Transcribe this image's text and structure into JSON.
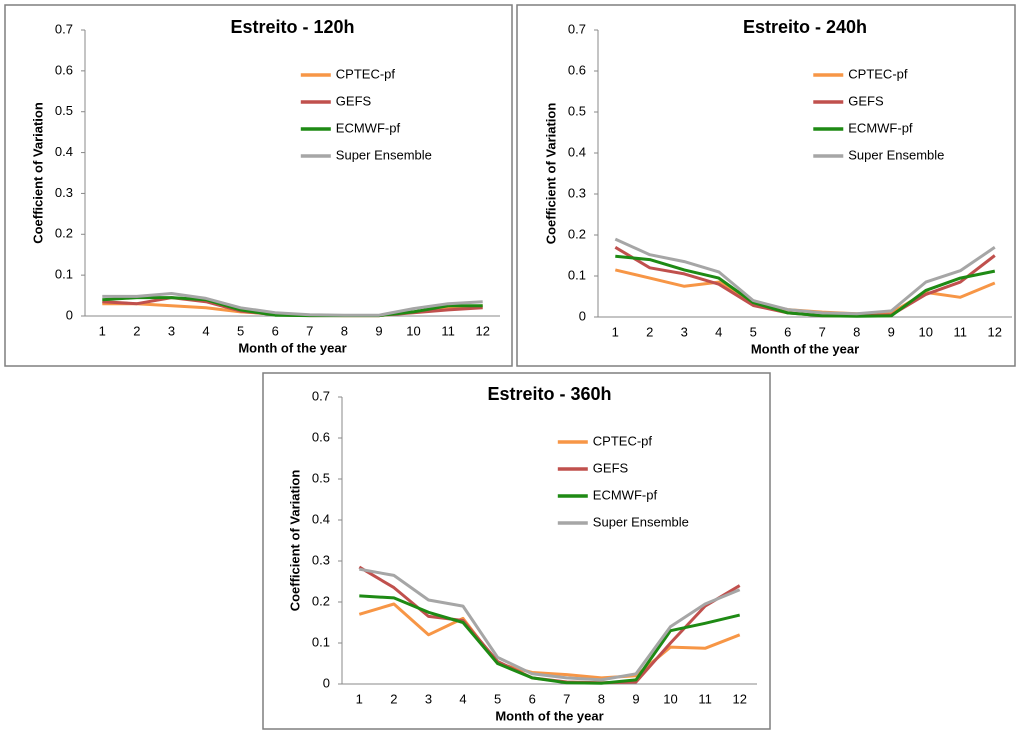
{
  "chart_data": [
    {
      "type": "line",
      "title": "Estreito - 120h",
      "xlabel": "Month of the year",
      "ylabel": "Coefficient of Variation",
      "categories": [
        "1",
        "2",
        "3",
        "4",
        "5",
        "6",
        "7",
        "8",
        "9",
        "10",
        "11",
        "12"
      ],
      "ylim": [
        0,
        0.7
      ],
      "yticks": [
        0,
        0.1,
        0.2,
        0.3,
        0.4,
        0.5,
        0.6,
        0.7
      ],
      "legend": "upper right",
      "series": [
        {
          "name": "CPTEC-pf",
          "color": "#f79646",
          "values": [
            0.03,
            0.03,
            0.025,
            0.02,
            0.01,
            0.005,
            0.002,
            0.001,
            0.001,
            0.01,
            0.02,
            0.025
          ]
        },
        {
          "name": "GEFS",
          "color": "#c0504d",
          "values": [
            0.035,
            0.03,
            0.045,
            0.035,
            0.012,
            0.003,
            0.001,
            0.001,
            0.001,
            0.008,
            0.015,
            0.02
          ]
        },
        {
          "name": "ECMWF-pf",
          "color": "#1e8a14",
          "values": [
            0.04,
            0.045,
            0.045,
            0.04,
            0.015,
            0.002,
            0.001,
            0.001,
            0.001,
            0.01,
            0.025,
            0.025
          ]
        },
        {
          "name": "Super Ensemble",
          "color": "#a6a6a6",
          "values": [
            0.048,
            0.048,
            0.055,
            0.043,
            0.02,
            0.008,
            0.003,
            0.002,
            0.002,
            0.018,
            0.03,
            0.035
          ]
        }
      ]
    },
    {
      "type": "line",
      "title": "Estreito - 240h",
      "xlabel": "Month of the year",
      "ylabel": "Coefficient of Variation",
      "categories": [
        "1",
        "2",
        "3",
        "4",
        "5",
        "6",
        "7",
        "8",
        "9",
        "10",
        "11",
        "12"
      ],
      "ylim": [
        0,
        0.7
      ],
      "yticks": [
        0,
        0.1,
        0.2,
        0.3,
        0.4,
        0.5,
        0.6,
        0.7
      ],
      "legend": "upper right",
      "series": [
        {
          "name": "CPTEC-pf",
          "color": "#f79646",
          "values": [
            0.115,
            0.095,
            0.075,
            0.085,
            0.035,
            0.018,
            0.012,
            0.008,
            0.01,
            0.06,
            0.048,
            0.083
          ]
        },
        {
          "name": "GEFS",
          "color": "#c0504d",
          "values": [
            0.17,
            0.12,
            0.105,
            0.08,
            0.028,
            0.01,
            0.003,
            0.003,
            0.005,
            0.055,
            0.085,
            0.15
          ]
        },
        {
          "name": "ECMWF-pf",
          "color": "#1e8a14",
          "values": [
            0.148,
            0.14,
            0.115,
            0.095,
            0.035,
            0.01,
            0.003,
            0.002,
            0.003,
            0.065,
            0.095,
            0.112
          ]
        },
        {
          "name": "Super Ensemble",
          "color": "#a6a6a6",
          "values": [
            0.19,
            0.152,
            0.135,
            0.11,
            0.04,
            0.018,
            0.01,
            0.008,
            0.015,
            0.085,
            0.113,
            0.17
          ]
        }
      ]
    },
    {
      "type": "line",
      "title": "Estreito - 360h",
      "xlabel": "Month of the year",
      "ylabel": "Coefficient of Variation",
      "categories": [
        "1",
        "2",
        "3",
        "4",
        "5",
        "6",
        "7",
        "8",
        "9",
        "10",
        "11",
        "12"
      ],
      "ylim": [
        0,
        0.7
      ],
      "yticks": [
        0,
        0.1,
        0.2,
        0.3,
        0.4,
        0.5,
        0.6,
        0.7
      ],
      "legend": "upper right",
      "series": [
        {
          "name": "CPTEC-pf",
          "color": "#f79646",
          "values": [
            0.17,
            0.195,
            0.12,
            0.16,
            0.05,
            0.028,
            0.023,
            0.015,
            0.02,
            0.09,
            0.087,
            0.12
          ]
        },
        {
          "name": "GEFS",
          "color": "#c0504d",
          "values": [
            0.285,
            0.235,
            0.165,
            0.155,
            0.055,
            0.015,
            0.005,
            0.003,
            0.005,
            0.1,
            0.19,
            0.24
          ]
        },
        {
          "name": "ECMWF-pf",
          "color": "#1e8a14",
          "values": [
            0.215,
            0.21,
            0.175,
            0.15,
            0.05,
            0.015,
            0.003,
            0.002,
            0.01,
            0.13,
            0.148,
            0.168
          ]
        },
        {
          "name": "Super Ensemble",
          "color": "#a6a6a6",
          "values": [
            0.28,
            0.265,
            0.205,
            0.19,
            0.065,
            0.025,
            0.015,
            0.01,
            0.025,
            0.14,
            0.195,
            0.23
          ]
        }
      ]
    }
  ]
}
